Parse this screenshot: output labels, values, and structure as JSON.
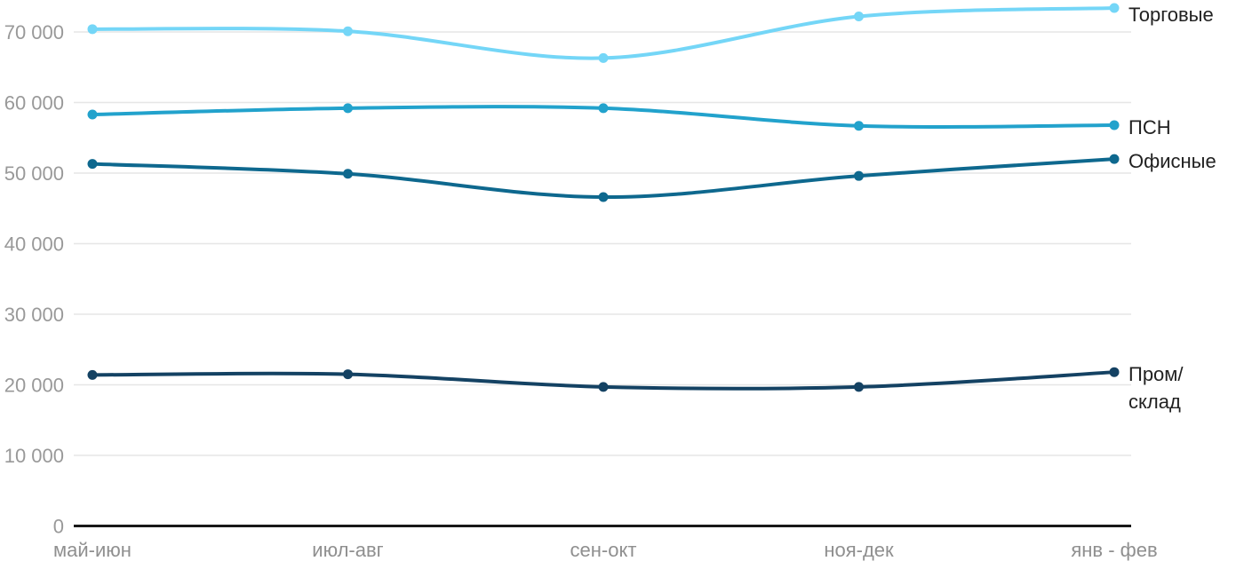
{
  "chart_data": {
    "type": "line",
    "curve": "smooth",
    "title": "",
    "xlabel": "",
    "ylabel": "",
    "grid": true,
    "legend_position": "right",
    "categories": [
      "май-июн",
      "июл-авг",
      "сен-окт",
      "ноя-дек",
      "янв - фев"
    ],
    "series": [
      {
        "name": "Торговые",
        "legend_lines": [
          "Торговые"
        ],
        "color": "#74D6F7",
        "values": [
          70400,
          70100,
          66300,
          72200,
          73400
        ]
      },
      {
        "name": "ПСН",
        "legend_lines": [
          "ПСН"
        ],
        "color": "#22A2CC",
        "values": [
          58300,
          59200,
          59200,
          56700,
          56800
        ]
      },
      {
        "name": "Офисные",
        "legend_lines": [
          "Офисные"
        ],
        "color": "#0E688E",
        "values": [
          51300,
          49900,
          46600,
          49600,
          52000
        ]
      },
      {
        "name": "Пром/склад",
        "legend_lines": [
          "Пром/",
          "склад"
        ],
        "color": "#144263",
        "values": [
          21400,
          21500,
          19700,
          19700,
          21800
        ]
      }
    ],
    "y_ticks": [
      {
        "value": 0,
        "label": "0"
      },
      {
        "value": 10000,
        "label": "10 000"
      },
      {
        "value": 20000,
        "label": "20 000"
      },
      {
        "value": 30000,
        "label": "30 000"
      },
      {
        "value": 40000,
        "label": "40 000"
      },
      {
        "value": 50000,
        "label": "50 000"
      },
      {
        "value": 60000,
        "label": "60 000"
      },
      {
        "value": 70000,
        "label": "70 000"
      }
    ],
    "ylim": [
      0,
      73500
    ]
  },
  "colors": {
    "background": "#ffffff",
    "grid": "#e6e6e6",
    "axis": "#181818",
    "y_tick_label": "#999999",
    "x_tick_label": "#8f8f8f",
    "legend_text": "#212121"
  }
}
